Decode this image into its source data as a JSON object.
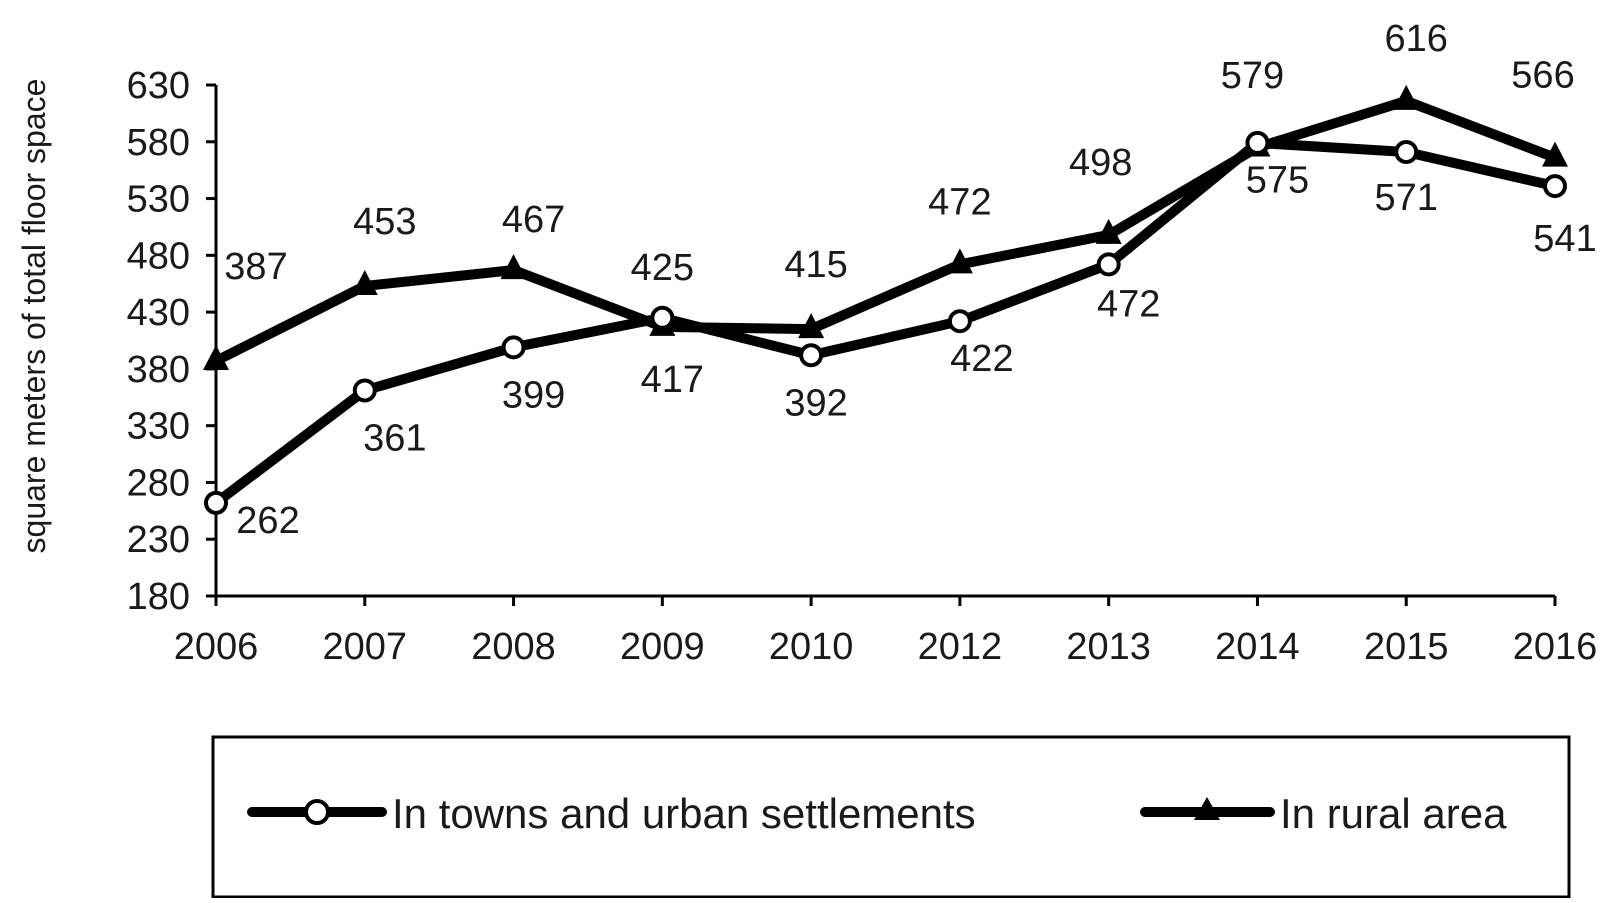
{
  "chart_data": {
    "type": "line",
    "title": "",
    "xlabel": "",
    "ylabel": "square meters of total floor space",
    "categories": [
      "2006",
      "2007",
      "2008",
      "2009",
      "2010",
      "2012",
      "2013",
      "2014",
      "2015",
      "2016"
    ],
    "ylim": [
      180,
      630
    ],
    "yticks": [
      180,
      230,
      280,
      330,
      380,
      430,
      480,
      530,
      580,
      630
    ],
    "grid": false,
    "legend_position": "bottom",
    "series": [
      {
        "name": "In towns and urban settlements",
        "marker": "open-circle",
        "color": "#000000",
        "values": [
          262,
          361,
          399,
          425,
          392,
          422,
          472,
          579,
          571,
          541
        ]
      },
      {
        "name": "In rural area",
        "marker": "filled-triangle",
        "color": "#000000",
        "values": [
          387,
          453,
          467,
          417,
          415,
          472,
          498,
          575,
          616,
          566
        ]
      }
    ]
  }
}
